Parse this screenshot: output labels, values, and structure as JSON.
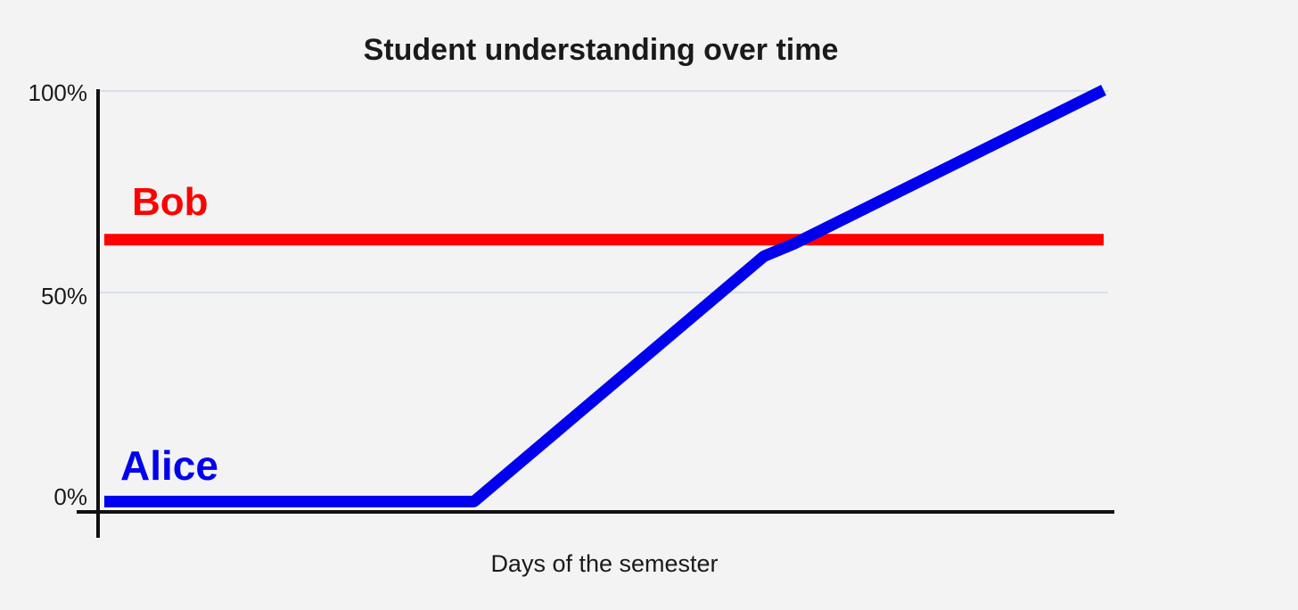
{
  "chart_data": {
    "type": "line",
    "title": "Student understanding over time",
    "xlabel": "Days of the semester",
    "ylabel": "",
    "ylim": [
      0,
      100
    ],
    "y_ticks": [
      {
        "value": 0,
        "label": "0%"
      },
      {
        "value": 50,
        "label": "50%"
      },
      {
        "value": 100,
        "label": "100%"
      }
    ],
    "x_ticks": [],
    "grid": true,
    "legend": "none (series labeled directly on chart)",
    "series": [
      {
        "name": "Bob",
        "color": "#ff0000",
        "x": [
          0,
          100
        ],
        "y": [
          64,
          64
        ]
      },
      {
        "name": "Alice",
        "color": "#0000ee",
        "x": [
          0,
          37,
          66,
          69,
          100
        ],
        "y": [
          1,
          1,
          60,
          63,
          100
        ]
      }
    ]
  }
}
